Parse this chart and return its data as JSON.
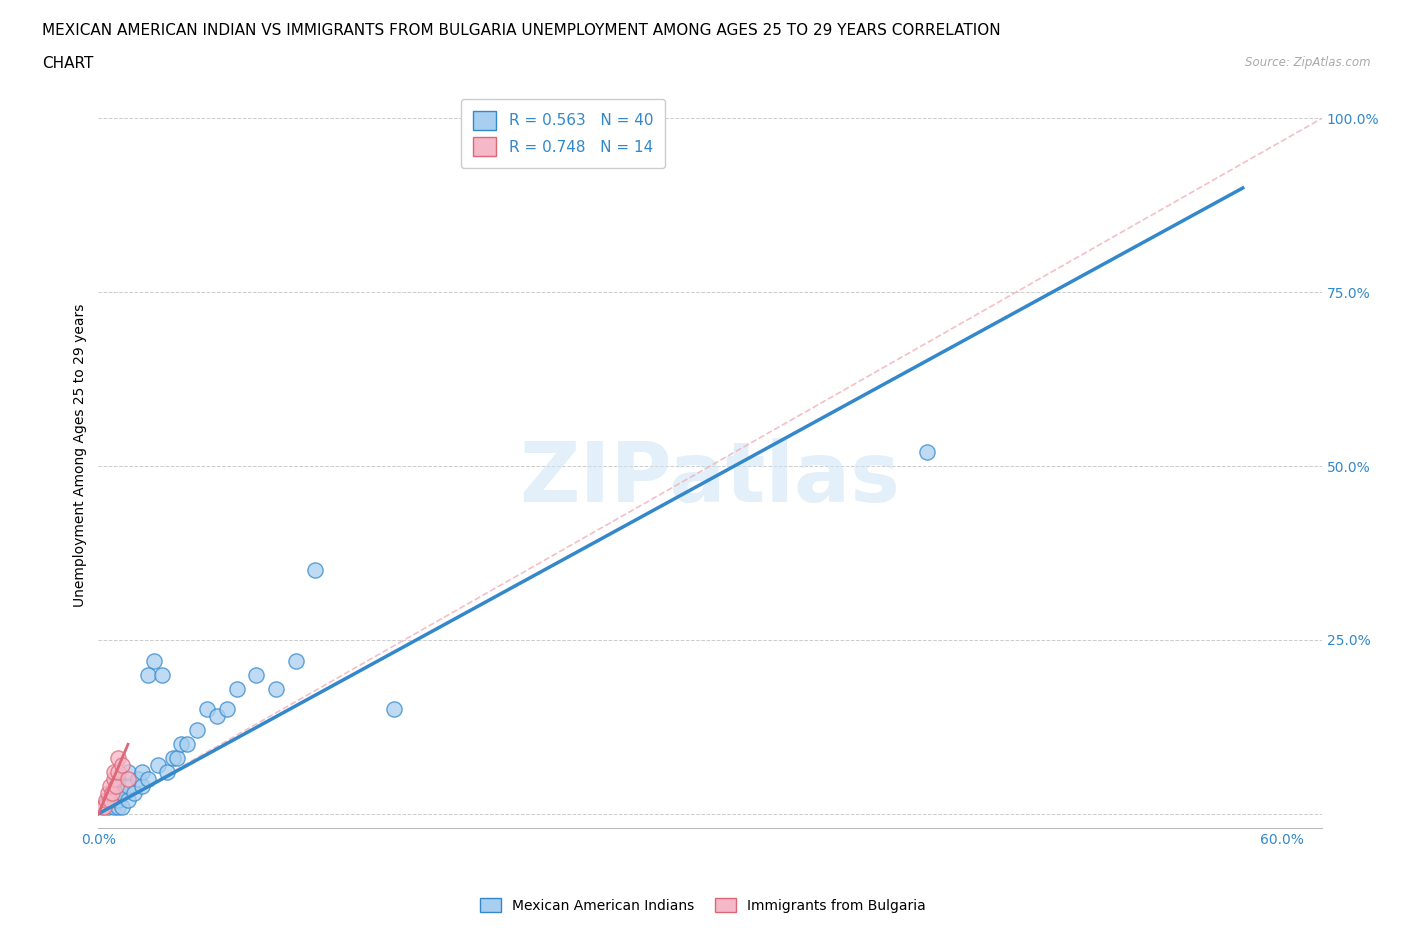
{
  "title_line1": "MEXICAN AMERICAN INDIAN VS IMMIGRANTS FROM BULGARIA UNEMPLOYMENT AMONG AGES 25 TO 29 YEARS CORRELATION",
  "title_line2": "CHART",
  "source": "Source: ZipAtlas.com",
  "ylabel": "Unemployment Among Ages 25 to 29 years",
  "xlim": [
    0.0,
    0.62
  ],
  "ylim": [
    -0.02,
    1.05
  ],
  "xticks": [
    0.0,
    0.1,
    0.2,
    0.3,
    0.4,
    0.5,
    0.6
  ],
  "xticklabels": [
    "0.0%",
    "",
    "",
    "",
    "",
    "",
    "60.0%"
  ],
  "yticks": [
    0.0,
    0.25,
    0.5,
    0.75,
    1.0
  ],
  "yticklabels": [
    "",
    "25.0%",
    "50.0%",
    "75.0%",
    "100.0%"
  ],
  "watermark": "ZIPatlas",
  "legend_r1": "R = 0.563",
  "legend_n1": "N = 40",
  "legend_r2": "R = 0.748",
  "legend_n2": "N = 14",
  "blue_scatter_x": [
    0.005,
    0.005,
    0.008,
    0.008,
    0.008,
    0.01,
    0.01,
    0.01,
    0.01,
    0.01,
    0.012,
    0.012,
    0.015,
    0.015,
    0.015,
    0.018,
    0.02,
    0.022,
    0.022,
    0.025,
    0.025,
    0.028,
    0.03,
    0.032,
    0.035,
    0.038,
    0.04,
    0.042,
    0.045,
    0.05,
    0.055,
    0.06,
    0.065,
    0.07,
    0.08,
    0.09,
    0.1,
    0.11,
    0.15,
    0.42
  ],
  "blue_scatter_y": [
    0.01,
    0.02,
    0.01,
    0.02,
    0.03,
    0.01,
    0.02,
    0.03,
    0.04,
    0.05,
    0.01,
    0.03,
    0.02,
    0.04,
    0.06,
    0.03,
    0.05,
    0.04,
    0.06,
    0.05,
    0.2,
    0.22,
    0.07,
    0.2,
    0.06,
    0.08,
    0.08,
    0.1,
    0.1,
    0.12,
    0.15,
    0.14,
    0.15,
    0.18,
    0.2,
    0.18,
    0.22,
    0.35,
    0.15,
    0.52
  ],
  "pink_scatter_x": [
    0.002,
    0.003,
    0.004,
    0.005,
    0.006,
    0.006,
    0.007,
    0.008,
    0.008,
    0.009,
    0.01,
    0.01,
    0.012,
    0.015
  ],
  "pink_scatter_y": [
    0.01,
    0.01,
    0.02,
    0.03,
    0.02,
    0.04,
    0.03,
    0.05,
    0.06,
    0.04,
    0.06,
    0.08,
    0.07,
    0.05
  ],
  "blue_line_x": [
    0.0,
    0.58
  ],
  "blue_line_y": [
    0.0,
    0.9
  ],
  "pink_line_x": [
    0.0,
    0.015
  ],
  "pink_line_y": [
    0.0,
    0.1
  ],
  "diag_line_x": [
    0.0,
    0.62
  ],
  "diag_line_y": [
    0.0,
    1.0
  ],
  "scatter_color_blue": "#a8cff0",
  "scatter_color_pink": "#f5b8c8",
  "line_color_blue": "#3388cc",
  "line_color_pink": "#dd6677",
  "diag_line_color": "#f0b0b8",
  "grid_color": "#cccccc",
  "background_color": "#ffffff",
  "title_fontsize": 11,
  "axis_label_fontsize": 10,
  "tick_fontsize": 10,
  "legend_fontsize": 11
}
